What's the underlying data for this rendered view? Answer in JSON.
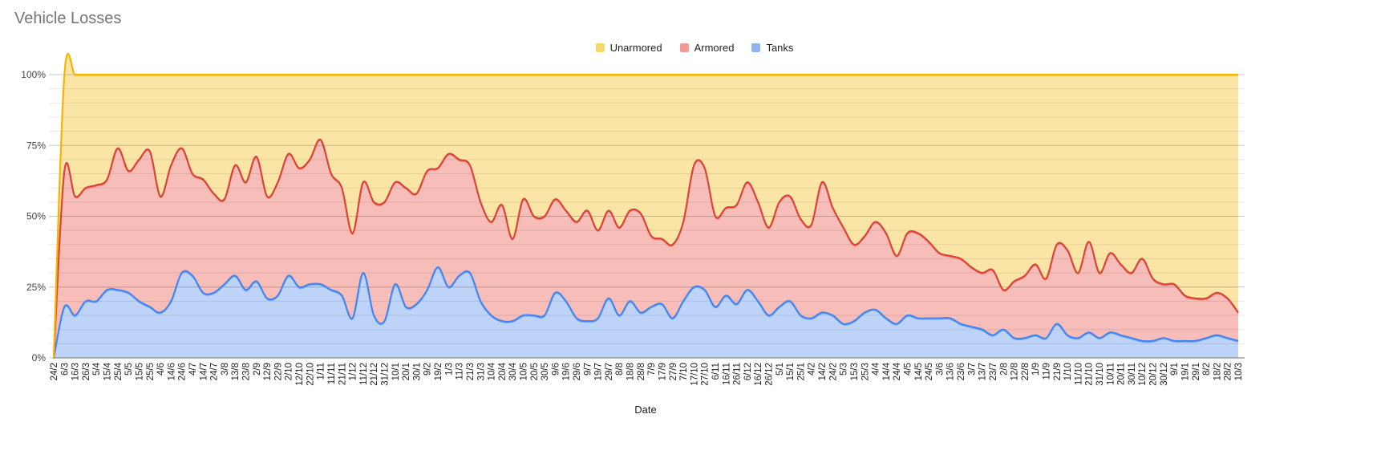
{
  "chart_data": {
    "type": "area",
    "stacked": "percent",
    "title": "Vehicle Losses",
    "xlabel": "Date",
    "ylabel": "",
    "ylim": [
      0,
      100
    ],
    "yticks": [
      "0%",
      "25%",
      "50%",
      "75%",
      "100%"
    ],
    "grid": true,
    "legend_position": "top",
    "categories": [
      "24/2",
      "6/3",
      "16/3",
      "26/3",
      "5/4",
      "15/4",
      "25/4",
      "5/5",
      "15/5",
      "25/5",
      "4/6",
      "14/6",
      "24/6",
      "4/7",
      "14/7",
      "24/7",
      "3/8",
      "13/8",
      "23/8",
      "2/9",
      "12/9",
      "22/9",
      "2/10",
      "12/10",
      "22/10",
      "1/11",
      "11/11",
      "21/11",
      "1/12",
      "11/12",
      "21/12",
      "31/12",
      "10/1",
      "20/1",
      "30/1",
      "9/2",
      "19/2",
      "1/3",
      "11/3",
      "21/3",
      "31/3",
      "10/4",
      "20/4",
      "30/4",
      "10/5",
      "20/5",
      "30/5",
      "9/6",
      "19/6",
      "29/6",
      "9/7",
      "19/7",
      "29/7",
      "8/8",
      "18/8",
      "28/8",
      "7/9",
      "17/9",
      "27/9",
      "7/10",
      "17/10",
      "27/10",
      "6/11",
      "16/11",
      "26/11",
      "6/12",
      "16/12",
      "26/12",
      "5/1",
      "15/1",
      "25/1",
      "4/2",
      "14/2",
      "24/2",
      "5/3",
      "15/3",
      "25/3",
      "4/4",
      "14/4",
      "24/4",
      "4/5",
      "14/5",
      "24/5",
      "3/6",
      "13/6",
      "23/6",
      "3/7",
      "13/7",
      "23/7",
      "2/8",
      "12/8",
      "22/8",
      "1/9",
      "11/9",
      "21/9",
      "1/10",
      "11/10",
      "21/10",
      "31/10",
      "10/11",
      "20/11",
      "30/11",
      "10/12",
      "20/12",
      "30/12",
      "9/1",
      "19/1",
      "29/1",
      "8/2",
      "18/2",
      "28/2",
      "10/3"
    ],
    "series": [
      {
        "name": "Tanks",
        "color": "#4285f4",
        "fill": "#bdd3f7",
        "values": [
          0,
          18,
          15,
          20,
          20,
          24,
          24,
          23,
          20,
          18,
          16,
          20,
          30,
          29,
          23,
          23,
          26,
          29,
          24,
          27,
          21,
          22,
          29,
          25,
          26,
          26,
          24,
          22,
          14,
          30,
          15,
          13,
          26,
          18,
          19,
          24,
          32,
          25,
          29,
          30,
          20,
          15,
          13,
          13,
          15,
          15,
          15,
          23,
          20,
          14,
          13,
          14,
          21,
          15,
          20,
          16,
          18,
          19,
          14,
          20,
          25,
          24,
          18,
          22,
          19,
          24,
          20,
          15,
          18,
          20,
          15,
          14,
          16,
          15,
          12,
          13,
          16,
          17,
          14,
          12,
          15,
          14,
          14,
          14,
          14,
          12,
          11,
          10,
          8,
          10,
          7,
          7,
          8,
          7,
          12,
          8,
          7,
          9,
          7,
          9,
          8,
          7,
          6,
          6,
          7,
          6,
          6,
          6,
          7,
          8,
          7,
          6
        ]
      },
      {
        "name": "Armored",
        "color": "#db4437",
        "fill": "#f7bdb8",
        "values": [
          0,
          48,
          42,
          40,
          41,
          39,
          50,
          43,
          50,
          55,
          41,
          48,
          44,
          36,
          40,
          35,
          30,
          39,
          38,
          44,
          36,
          40,
          43,
          42,
          44,
          51,
          41,
          38,
          30,
          32,
          40,
          42,
          36,
          42,
          39,
          42,
          35,
          47,
          41,
          38,
          35,
          33,
          41,
          29,
          41,
          35,
          35,
          33,
          32,
          34,
          39,
          31,
          31,
          31,
          32,
          35,
          25,
          23,
          26,
          28,
          43,
          43,
          32,
          31,
          35,
          38,
          35,
          31,
          37,
          37,
          34,
          33,
          46,
          38,
          34,
          27,
          27,
          31,
          30,
          24,
          29,
          30,
          27,
          23,
          22,
          23,
          21,
          20,
          23,
          14,
          20,
          22,
          25,
          21,
          28,
          30,
          23,
          32,
          23,
          28,
          25,
          23,
          29,
          22,
          19,
          20,
          16,
          15,
          14,
          15,
          14,
          10
        ]
      },
      {
        "name": "Unarmored",
        "color": "#f4b400",
        "fill": "#fbe5a6",
        "values": [
          0,
          34,
          43,
          40,
          39,
          37,
          26,
          34,
          30,
          27,
          43,
          32,
          26,
          35,
          37,
          42,
          44,
          32,
          38,
          29,
          43,
          38,
          28,
          33,
          30,
          23,
          35,
          40,
          56,
          38,
          45,
          45,
          38,
          40,
          42,
          34,
          33,
          28,
          30,
          32,
          45,
          52,
          46,
          58,
          44,
          50,
          50,
          44,
          48,
          52,
          48,
          55,
          48,
          54,
          48,
          49,
          57,
          58,
          60,
          52,
          32,
          33,
          50,
          47,
          46,
          38,
          45,
          54,
          45,
          43,
          51,
          53,
          38,
          47,
          54,
          60,
          57,
          52,
          56,
          64,
          56,
          56,
          59,
          63,
          64,
          65,
          68,
          70,
          69,
          76,
          73,
          71,
          67,
          72,
          60,
          62,
          70,
          59,
          70,
          63,
          67,
          70,
          65,
          72,
          74,
          74,
          78,
          79,
          79,
          77,
          79,
          84
        ]
      }
    ],
    "legend": [
      "Unarmored",
      "Armored",
      "Tanks"
    ]
  }
}
